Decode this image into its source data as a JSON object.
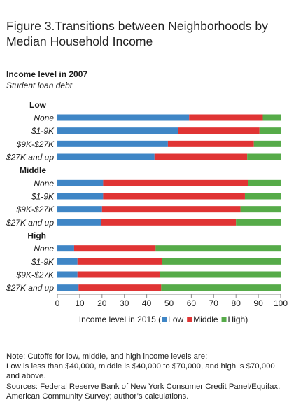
{
  "figure": {
    "title_line1": "Figure 3.Transitions between Neighborhoods by",
    "title_line2": "Median Household Income",
    "heading": "Income level in 2007",
    "subheading": "Student loan debt"
  },
  "chart_data": {
    "type": "bar",
    "orientation": "horizontal",
    "stacked": true,
    "xlim": [
      0,
      100
    ],
    "xticks": [
      0,
      10,
      20,
      30,
      40,
      50,
      60,
      70,
      80,
      90,
      100
    ],
    "grid": false,
    "legend_position": "bottom",
    "legend_prefix": "Income level in 2015 (",
    "legend_suffix": ")",
    "groups": [
      {
        "label": "Low",
        "categories": [
          "None",
          "$1-9K",
          "$9K-$27K",
          "$27K and up"
        ]
      },
      {
        "label": "Middle",
        "categories": [
          "None",
          "$1-9K",
          "$9K-$27K",
          "$27K and up"
        ]
      },
      {
        "label": "High",
        "categories": [
          "None",
          "$1-9K",
          "$9K-$27K",
          "$27K and up"
        ]
      }
    ],
    "series": [
      {
        "name": "Low",
        "color": "#3f86c6",
        "values": [
          59,
          54,
          49.5,
          43.5,
          20.5,
          20.5,
          20,
          19.5,
          7.5,
          9,
          9,
          9.5
        ]
      },
      {
        "name": "Middle",
        "color": "#e03434",
        "values": [
          33,
          36.5,
          38.5,
          41.5,
          65,
          63.5,
          62,
          60.5,
          36.5,
          38,
          37,
          37
        ]
      },
      {
        "name": "High",
        "color": "#56ab49",
        "values": [
          8,
          9.5,
          12,
          15,
          14.5,
          16,
          18,
          20,
          56,
          53,
          54,
          53.5
        ]
      }
    ]
  },
  "note": {
    "line1": "Note: Cutoffs for low, middle, and high income levels are:",
    "line2": "Low is less than $40,000, middle is $40,000 to $70,000, and high is $70,000",
    "line3": "and above.",
    "line4": "Sources: Federal Reserve Bank of New York Consumer Credit Panel/Equifax,",
    "line5": "American Community Survey; author’s calculations."
  }
}
